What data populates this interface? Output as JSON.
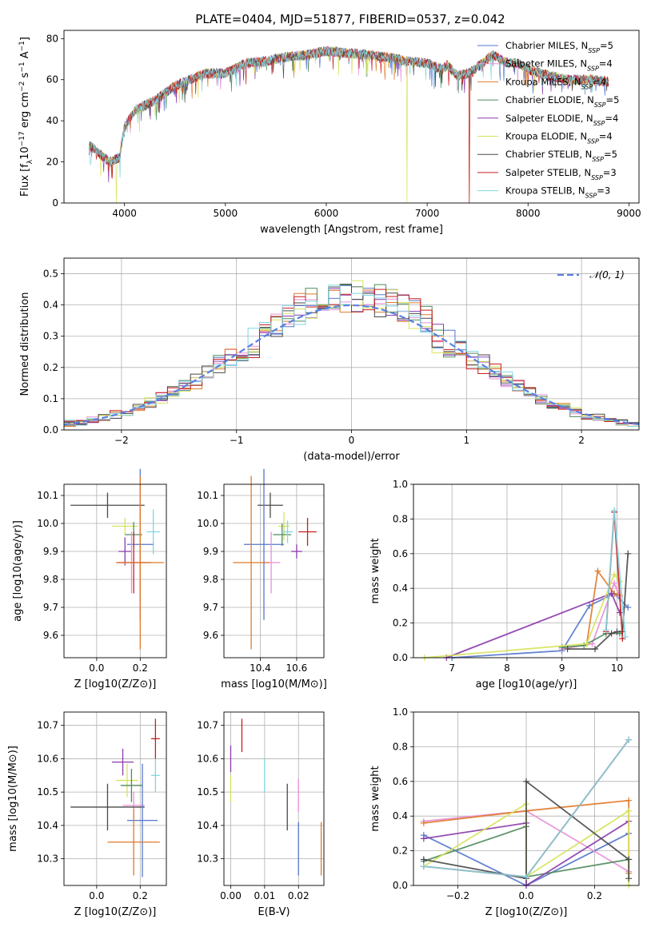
{
  "title": "PLATE=0404, MJD=51877, FIBERID=0537, z=0.042",
  "colors": {
    "Chabrier MILES": "#5577cc",
    "Salpeter MILES": "#e98fd8",
    "Kroupa MILES": "#e07a2a",
    "Chabrier ELODIE": "#4f8a5c",
    "Salpeter ELODIE": "#8a3aaa",
    "Kroupa ELODIE": "#d6e35a",
    "Chabrier STELIB": "#4a4a4a",
    "Salpeter STELIB": "#c81e1e",
    "Kroupa STELIB": "#80d6e2",
    "gaussian": "#5a7fe0",
    "grid": "#b0b0b0"
  },
  "chart_data": [
    {
      "type": "line",
      "name": "spectrum",
      "title": "PLATE=0404, MJD=51877, FIBERID=0537, z=0.042",
      "xlabel": "wavelength [Angstrom, rest frame]",
      "ylabel": "Flux [f_λ 10^-17 erg cm^-2 s^-1 A^-1]",
      "xlim": [
        3400,
        9100
      ],
      "ylim": [
        0,
        84
      ],
      "xticks": [
        "4000",
        "5000",
        "6000",
        "7000",
        "8000",
        "9000"
      ],
      "yticks": [
        "0",
        "20",
        "40",
        "60",
        "80"
      ],
      "grid": false,
      "legend": "right",
      "continuum": {
        "x": [
          3650,
          3750,
          3850,
          3950,
          4000,
          4100,
          4300,
          4500,
          4800,
          5000,
          5200,
          5400,
          5600,
          5800,
          6000,
          6200,
          6400,
          6600,
          6800,
          7000,
          7150,
          7200,
          7300,
          7400,
          7500,
          7650,
          7800,
          7900,
          8000,
          8200,
          8400,
          8600,
          8800
        ],
        "y": [
          28,
          24,
          20,
          22,
          37,
          45,
          50,
          57,
          63,
          63,
          68,
          69,
          71,
          72,
          74,
          73,
          72,
          71,
          69,
          68,
          65,
          67,
          62,
          63,
          66,
          72,
          68,
          68,
          65,
          62,
          60,
          60,
          59
        ]
      },
      "dropouts": [
        {
          "series": "Kroupa ELODIE",
          "x": 3920
        },
        {
          "series": "Kroupa ELODIE",
          "x": 6800
        },
        {
          "series": "Salpeter STELIB",
          "x": 7420
        },
        {
          "series": "Kroupa MILES",
          "x": 7420
        }
      ],
      "series": [
        {
          "name": "Chabrier MILES",
          "nssp": "5"
        },
        {
          "name": "Salpeter MILES",
          "nssp": "4"
        },
        {
          "name": "Kroupa MILES",
          "nssp": "4"
        },
        {
          "name": "Chabrier ELODIE",
          "nssp": "5"
        },
        {
          "name": "Salpeter ELODIE",
          "nssp": "4"
        },
        {
          "name": "Kroupa ELODIE",
          "nssp": "4"
        },
        {
          "name": "Chabrier STELIB",
          "nssp": "5"
        },
        {
          "name": "Salpeter STELIB",
          "nssp": "3"
        },
        {
          "name": "Kroupa STELIB",
          "nssp": "3"
        }
      ]
    },
    {
      "type": "bar",
      "name": "residual-histogram",
      "xlabel": "(data-model)/error",
      "ylabel": "Normed distribution",
      "xlim": [
        -2.5,
        2.5
      ],
      "ylim": [
        0,
        0.55
      ],
      "xticks": [
        "−2",
        "−1",
        "0",
        "1",
        "2"
      ],
      "yticks": [
        "0.0",
        "0.1",
        "0.2",
        "0.3",
        "0.4",
        "0.5"
      ],
      "grid": true,
      "legend": "top-right",
      "legend_label": "𝒩(0, 1)",
      "bin_width": 0.1,
      "sigma": 1.0
    },
    {
      "type": "scatter",
      "name": "age-vs-Z",
      "xlabel": "Z [log10(Z/Z⊙)]",
      "ylabel": "age [log10(age/yr)]",
      "xlim": [
        -0.15,
        0.32
      ],
      "ylim": [
        9.52,
        10.14
      ],
      "xticks": [
        "0.0",
        "0.2"
      ],
      "yticks": [
        "9.6",
        "9.7",
        "9.8",
        "9.9",
        "10.0",
        "10.1"
      ],
      "grid": true,
      "points": [
        {
          "series": "Chabrier STELIB",
          "x": 0.05,
          "y": 10.065,
          "xerr": 0.17,
          "yerr": 0.045
        },
        {
          "series": "Kroupa ELODIE",
          "x": 0.13,
          "y": 9.99,
          "xerr": 0.06,
          "yerr": 0.03
        },
        {
          "series": "Chabrier ELODIE",
          "x": 0.17,
          "y": 9.96,
          "xerr": 0.04,
          "yerr": 0.045
        },
        {
          "series": "Kroupa STELIB",
          "x": 0.26,
          "y": 9.97,
          "xerr": 0.03,
          "yerr": 0.08
        },
        {
          "series": "Chabrier MILES",
          "x": 0.2,
          "y": 9.925,
          "xerr": 0.06,
          "yerr": 0.27
        },
        {
          "series": "Salpeter ELODIE",
          "x": 0.13,
          "y": 9.9,
          "xerr": 0.03,
          "yerr": 0.05
        },
        {
          "series": "Salpeter MILES",
          "x": 0.16,
          "y": 9.86,
          "xerr": 0.06,
          "yerr": 0.11
        },
        {
          "series": "Salpeter STELIB",
          "x": 0.17,
          "y": 9.86,
          "xerr": 0.08,
          "yerr": 0.11
        },
        {
          "series": "Kroupa MILES",
          "x": 0.2,
          "y": 9.86,
          "xerr": 0.11,
          "yerr": 0.31
        }
      ]
    },
    {
      "type": "scatter",
      "name": "age-vs-mass",
      "xlabel": "mass [log10(M/M⊙)]",
      "ylabel": "",
      "xlim": [
        10.2,
        10.75
      ],
      "ylim": [
        9.52,
        10.14
      ],
      "xticks": [
        "10.4",
        "10.6"
      ],
      "yticks": [
        "9.6",
        "9.7",
        "9.8",
        "9.9",
        "10.0",
        "10.1"
      ],
      "grid": true,
      "points": [
        {
          "series": "Chabrier STELIB",
          "x": 10.455,
          "y": 10.065,
          "xerr": 0.07,
          "yerr": 0.045
        },
        {
          "series": "Kroupa ELODIE",
          "x": 10.53,
          "y": 9.99,
          "xerr": 0.03,
          "yerr": 0.05
        },
        {
          "series": "Chabrier ELODIE",
          "x": 10.52,
          "y": 9.96,
          "xerr": 0.05,
          "yerr": 0.04
        },
        {
          "series": "Kroupa STELIB",
          "x": 10.55,
          "y": 9.97,
          "xerr": 0.03,
          "yerr": 0.04
        },
        {
          "series": "Salpeter STELIB",
          "x": 10.66,
          "y": 9.97,
          "xerr": 0.05,
          "yerr": 0.05
        },
        {
          "series": "Chabrier MILES",
          "x": 10.42,
          "y": 9.925,
          "xerr": 0.11,
          "yerr": 0.27
        },
        {
          "series": "Salpeter ELODIE",
          "x": 10.6,
          "y": 9.9,
          "xerr": 0.03,
          "yerr": 0.025
        },
        {
          "series": "Salpeter MILES",
          "x": 10.46,
          "y": 9.86,
          "xerr": 0.05,
          "yerr": 0.11
        },
        {
          "series": "Kroupa MILES",
          "x": 10.35,
          "y": 9.86,
          "xerr": 0.1,
          "yerr": 0.31
        }
      ]
    },
    {
      "type": "line",
      "name": "mass-weight-vs-age",
      "xlabel": "age [log10(age/yr)]",
      "ylabel": "mass weight",
      "xlim": [
        6.3,
        10.4
      ],
      "ylim": [
        0,
        1
      ],
      "xticks": [
        "7",
        "8",
        "9",
        "10"
      ],
      "yticks": [
        "0.0",
        "0.2",
        "0.4",
        "0.6",
        "0.8",
        "1.0"
      ],
      "grid": true,
      "series": [
        {
          "name": "Chabrier MILES",
          "x": [
            7.0,
            9.0,
            9.5,
            9.95,
            10.2
          ],
          "y": [
            0.0,
            0.04,
            0.3,
            0.37,
            0.29
          ]
        },
        {
          "name": "Salpeter MILES",
          "x": [
            9.0,
            9.55,
            9.95,
            10.05
          ],
          "y": [
            0.05,
            0.08,
            0.43,
            0.35
          ]
        },
        {
          "name": "Kroupa MILES",
          "x": [
            9.45,
            9.65,
            9.95,
            10.05
          ],
          "y": [
            0.08,
            0.5,
            0.37,
            0.36
          ]
        },
        {
          "name": "Chabrier ELODIE",
          "x": [
            9.0,
            9.4,
            9.8,
            10.05
          ],
          "y": [
            0.06,
            0.07,
            0.14,
            0.14
          ]
        },
        {
          "name": "Salpeter ELODIE",
          "x": [
            6.9,
            9.9,
            10.05
          ],
          "y": [
            0.0,
            0.37,
            0.26
          ]
        },
        {
          "name": "Kroupa ELODIE",
          "x": [
            6.5,
            9.45,
            9.95,
            10.05
          ],
          "y": [
            0.0,
            0.08,
            0.48,
            0.44
          ]
        },
        {
          "name": "Chabrier STELIB",
          "x": [
            9.1,
            9.6,
            9.9,
            10.0,
            10.1,
            10.2
          ],
          "y": [
            0.05,
            0.05,
            0.14,
            0.15,
            0.15,
            0.6
          ]
        },
        {
          "name": "Salpeter STELIB",
          "x": [
            9.8,
            9.95,
            10.1
          ],
          "y": [
            0.15,
            0.84,
            0.11
          ]
        },
        {
          "name": "Kroupa STELIB",
          "x": [
            9.8,
            9.95,
            10.15
          ],
          "y": [
            0.16,
            0.85,
            0.12
          ]
        }
      ]
    },
    {
      "type": "scatter",
      "name": "mass-vs-Z",
      "xlabel": "Z [log10(Z/Z⊙)]",
      "ylabel": "mass [log10(M/M⊙)]",
      "xlim": [
        -0.15,
        0.32
      ],
      "ylim": [
        10.22,
        10.74
      ],
      "xticks": [
        "0.0",
        "0.2"
      ],
      "yticks": [
        "10.3",
        "10.4",
        "10.5",
        "10.6",
        "10.7"
      ],
      "grid": true,
      "points": [
        {
          "series": "Salpeter STELIB",
          "x": 0.27,
          "y": 10.66,
          "xerr": 0.02,
          "yerr": 0.06
        },
        {
          "series": "Salpeter ELODIE",
          "x": 0.12,
          "y": 10.59,
          "xerr": 0.05,
          "yerr": 0.04
        },
        {
          "series": "Kroupa STELIB",
          "x": 0.27,
          "y": 10.55,
          "xerr": 0.02,
          "yerr": 0.05
        },
        {
          "series": "Kroupa ELODIE",
          "x": 0.14,
          "y": 10.535,
          "xerr": 0.05,
          "yerr": 0.05
        },
        {
          "series": "Chabrier ELODIE",
          "x": 0.16,
          "y": 10.52,
          "xerr": 0.05,
          "yerr": 0.05
        },
        {
          "series": "Salpeter MILES",
          "x": 0.17,
          "y": 10.46,
          "xerr": 0.05,
          "yerr": 0.04
        },
        {
          "series": "Chabrier STELIB",
          "x": 0.05,
          "y": 10.455,
          "xerr": 0.17,
          "yerr": 0.07
        },
        {
          "series": "Chabrier MILES",
          "x": 0.21,
          "y": 10.415,
          "xerr": 0.07,
          "yerr": 0.17
        },
        {
          "series": "Kroupa MILES",
          "x": 0.17,
          "y": 10.35,
          "xerr": 0.12,
          "yerr": 0.1
        }
      ]
    },
    {
      "type": "scatter",
      "name": "mass-vs-EBV",
      "xlabel": "E(B-V)",
      "ylabel": "",
      "xlim": [
        -0.002,
        0.0275
      ],
      "ylim": [
        10.22,
        10.74
      ],
      "xticks": [
        "0.00",
        "0.01",
        "0.02"
      ],
      "yticks": [
        "10.3",
        "10.4",
        "10.5",
        "10.6",
        "10.7"
      ],
      "grid": true,
      "points": [
        {
          "series": "Salpeter STELIB",
          "x": 0.0033,
          "y": 10.67,
          "xerr": 0,
          "yerr": 0.05
        },
        {
          "series": "Salpeter ELODIE",
          "x": 0.0,
          "y": 10.6,
          "xerr": 0,
          "yerr": 0.04
        },
        {
          "series": "Kroupa STELIB",
          "x": 0.01,
          "y": 10.55,
          "xerr": 0,
          "yerr": 0.05
        },
        {
          "series": "Kroupa ELODIE",
          "x": 0.0,
          "y": 10.51,
          "xerr": 0,
          "yerr": 0.04
        },
        {
          "series": "Salpeter MILES",
          "x": 0.02,
          "y": 10.49,
          "xerr": 0,
          "yerr": 0.05
        },
        {
          "series": "Chabrier STELIB",
          "x": 0.0167,
          "y": 10.455,
          "xerr": 0,
          "yerr": 0.07
        },
        {
          "series": "Chabrier MILES",
          "x": 0.02,
          "y": 10.33,
          "xerr": 0,
          "yerr": 0.08
        },
        {
          "series": "Kroupa MILES",
          "x": 0.0267,
          "y": 10.33,
          "xerr": 0,
          "yerr": 0.08
        }
      ]
    },
    {
      "type": "line",
      "name": "mass-weight-vs-Z",
      "xlabel": "Z [log10(Z/Z⊙)]",
      "ylabel": "mass weight",
      "xlim": [
        -0.33,
        0.33
      ],
      "ylim": [
        0,
        1
      ],
      "xticks": [
        "−0.2",
        "0.0",
        "0.2"
      ],
      "yticks": [
        "0.0",
        "0.2",
        "0.4",
        "0.6",
        "0.8",
        "1.0"
      ],
      "grid": true,
      "series": [
        {
          "name": "Chabrier MILES",
          "x": [
            -0.3,
            0.0,
            0.3
          ],
          "y": [
            0.29,
            0.0,
            0.3
          ]
        },
        {
          "name": "Salpeter MILES",
          "x": [
            -0.3,
            0.0,
            0.3
          ],
          "y": [
            0.37,
            0.43,
            0.08
          ]
        },
        {
          "name": "Kroupa MILES",
          "x": [
            -0.3,
            0.0,
            0.3,
            0.3
          ],
          "y": [
            0.36,
            0.43,
            0.49,
            0.07
          ]
        },
        {
          "name": "Chabrier ELODIE",
          "x": [
            -0.3,
            0.0,
            0.0,
            0.3
          ],
          "y": [
            0.14,
            0.34,
            0.05,
            0.15
          ]
        },
        {
          "name": "Salpeter ELODIE",
          "x": [
            -0.3,
            0.0,
            0.0,
            0.3
          ],
          "y": [
            0.27,
            0.36,
            0.0,
            0.37
          ]
        },
        {
          "name": "Kroupa ELODIE",
          "x": [
            -0.3,
            0.0,
            0.0,
            0.3,
            0.3
          ],
          "y": [
            0.11,
            0.47,
            0.05,
            0.43,
            0.0
          ]
        },
        {
          "name": "Chabrier STELIB",
          "x": [
            -0.3,
            0.0,
            0.0,
            0.3,
            0.3
          ],
          "y": [
            0.15,
            0.04,
            0.6,
            0.15,
            0.04
          ]
        },
        {
          "name": "Salpeter STELIB",
          "x": [
            -0.3,
            0.0,
            0.3
          ],
          "y": [
            0.11,
            0.05,
            0.84
          ]
        },
        {
          "name": "Kroupa STELIB",
          "x": [
            -0.3,
            0.0,
            0.3
          ],
          "y": [
            0.11,
            0.05,
            0.84
          ]
        }
      ]
    }
  ]
}
